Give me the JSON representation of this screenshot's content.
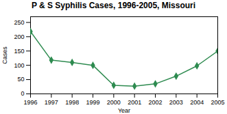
{
  "chart_data": {
    "type": "line",
    "title": "P & S Syphilis Cases, 1996-2005, Missouri",
    "xlabel": "Year",
    "ylabel": "Cases",
    "x": [
      1996,
      1997,
      1998,
      1999,
      2000,
      2001,
      2002,
      2003,
      2004,
      2005
    ],
    "values": [
      218,
      118,
      110,
      100,
      30,
      27,
      35,
      62,
      98,
      150
    ],
    "color": "#2e8b50",
    "marker": "diamond",
    "xlim": [
      1996,
      2005
    ],
    "xticks": [
      1996,
      1997,
      1998,
      1999,
      2000,
      2001,
      2002,
      2003,
      2004,
      2005
    ],
    "ylim": [
      0,
      270
    ],
    "yticks": [
      0,
      50,
      100,
      150,
      200,
      250
    ],
    "grid": false
  }
}
